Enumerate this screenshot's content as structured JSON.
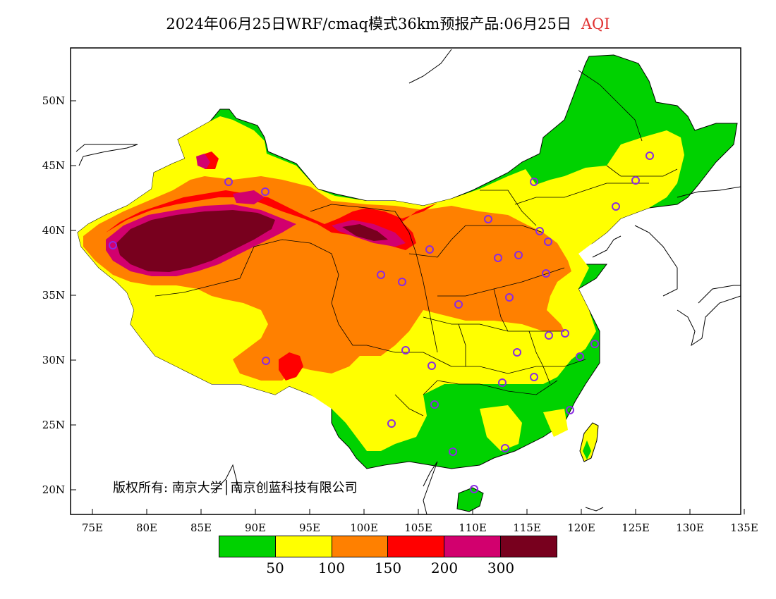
{
  "title": {
    "main": "2024年06月25日WRF/cmaq模式36km预报产品:06月25日",
    "product": "AQI"
  },
  "axes": {
    "lon_ticks": [
      "75E",
      "80E",
      "85E",
      "90E",
      "95E",
      "100E",
      "105E",
      "110E",
      "115E",
      "120E",
      "125E",
      "130E",
      "135E"
    ],
    "lat_ticks": [
      "50N",
      "45N",
      "40N",
      "35N",
      "30N",
      "25N",
      "20N"
    ]
  },
  "copyright": "版权所有: 南京大学│南京创蓝科技有限公司",
  "legend": {
    "colors": [
      "#00d200",
      "#ffff00",
      "#ff8000",
      "#ff0000",
      "#d2006e",
      "#78001e"
    ],
    "labels": [
      "50",
      "100",
      "150",
      "200",
      "300"
    ]
  },
  "colors": {
    "good": "#00d200",
    "moderate": "#ffff00",
    "sensitive": "#ff8000",
    "unhealthy": "#ff0000",
    "very_unhealthy": "#d2006e",
    "hazardous": "#78001e",
    "station_marker": "#8a2be2"
  },
  "icons": {
    "station": "circle-marker-icon"
  }
}
